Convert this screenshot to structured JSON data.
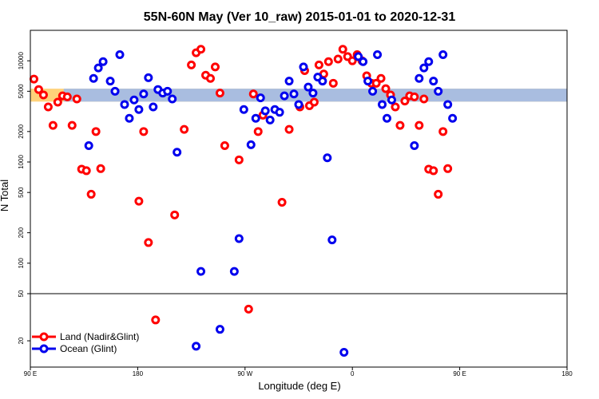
{
  "chart_data": {
    "type": "scatter",
    "title": "55N-60N May (Ver 10_raw)   2015-01-01 to 2020-12-31",
    "xlabel": "Longitude (deg E)",
    "ylabel": "N Total",
    "xlim": [
      90,
      540
    ],
    "x_ticks": [
      {
        "value": 90,
        "label": "90 E"
      },
      {
        "value": 180,
        "label": "180"
      },
      {
        "value": 270,
        "label": "90 W"
      },
      {
        "value": 360,
        "label": "0"
      },
      {
        "value": 450,
        "label": "90 E"
      },
      {
        "value": 540,
        "label": "180"
      }
    ],
    "upper_panel": {
      "scale": "log",
      "ylim": [
        50,
        20000
      ],
      "y_ticks": [
        100,
        200,
        500,
        1000,
        2000,
        5000,
        10000
      ]
    },
    "lower_panel": {
      "scale": "log",
      "ylim": [
        12,
        50
      ],
      "y_ticks": [
        20,
        50
      ]
    },
    "bands": [
      {
        "name": "wrap-shade",
        "from": 5300,
        "to": 3950,
        "color": "#ffd27a"
      },
      {
        "name": "wrap-gray",
        "from": 5300,
        "to": 3950,
        "color": "#a9bde0"
      }
    ],
    "legend_position": "bottom-left",
    "series": [
      {
        "name": "Land (Nadir&Glint)",
        "color": "#ff0000",
        "points": [
          [
            93,
            6600
          ],
          [
            97,
            5200
          ],
          [
            101,
            4600
          ],
          [
            105,
            3500
          ],
          [
            109,
            2300
          ],
          [
            113,
            3900
          ],
          [
            117,
            4500
          ],
          [
            121,
            4400
          ],
          [
            125,
            2300
          ],
          [
            129,
            4200
          ],
          [
            133,
            850
          ],
          [
            137,
            820
          ],
          [
            141,
            480
          ],
          [
            145,
            2000
          ],
          [
            149,
            860
          ],
          [
            181,
            410
          ],
          [
            185,
            2000
          ],
          [
            189,
            160
          ],
          [
            195,
            30
          ],
          [
            211,
            300
          ],
          [
            219,
            2100
          ],
          [
            225,
            9100
          ],
          [
            229,
            12000
          ],
          [
            233,
            13000
          ],
          [
            237,
            7200
          ],
          [
            241,
            6700
          ],
          [
            245,
            8700
          ],
          [
            249,
            4800
          ],
          [
            253,
            1450
          ],
          [
            265,
            1050
          ],
          [
            273,
            37
          ],
          [
            277,
            4700
          ],
          [
            281,
            2000
          ],
          [
            285,
            2900
          ],
          [
            301,
            400
          ],
          [
            307,
            2100
          ],
          [
            316,
            3500
          ],
          [
            320,
            8000
          ],
          [
            324,
            3600
          ],
          [
            328,
            3900
          ],
          [
            332,
            9100
          ],
          [
            336,
            7400
          ],
          [
            340,
            9800
          ],
          [
            344,
            6000
          ],
          [
            348,
            10400
          ],
          [
            352,
            13000
          ],
          [
            356,
            11000
          ],
          [
            360,
            10000
          ],
          [
            364,
            11500
          ],
          [
            368,
            10000
          ],
          [
            372,
            7100
          ],
          [
            376,
            6000
          ],
          [
            380,
            6000
          ],
          [
            384,
            6700
          ],
          [
            388,
            5300
          ],
          [
            392,
            4600
          ],
          [
            396,
            3500
          ],
          [
            400,
            2300
          ],
          [
            404,
            4000
          ],
          [
            408,
            4500
          ],
          [
            412,
            4400
          ],
          [
            416,
            2300
          ],
          [
            420,
            4200
          ],
          [
            424,
            850
          ],
          [
            428,
            820
          ],
          [
            432,
            480
          ],
          [
            436,
            2000
          ],
          [
            440,
            860
          ]
        ]
      },
      {
        "name": "Ocean (Glint)",
        "color": "#0000ee",
        "points": [
          [
            139,
            1450
          ],
          [
            143,
            6700
          ],
          [
            147,
            8500
          ],
          [
            151,
            9800
          ],
          [
            157,
            6300
          ],
          [
            161,
            5000
          ],
          [
            165,
            11500
          ],
          [
            169,
            3700
          ],
          [
            173,
            2700
          ],
          [
            177,
            4100
          ],
          [
            181,
            3300
          ],
          [
            185,
            4700
          ],
          [
            189,
            6800
          ],
          [
            193,
            3500
          ],
          [
            197,
            5200
          ],
          [
            201,
            4800
          ],
          [
            205,
            5000
          ],
          [
            209,
            4200
          ],
          [
            213,
            1250
          ],
          [
            229,
            18
          ],
          [
            233,
            83
          ],
          [
            249,
            25
          ],
          [
            261,
            83
          ],
          [
            265,
            175
          ],
          [
            269,
            3300
          ],
          [
            275,
            1480
          ],
          [
            279,
            2700
          ],
          [
            283,
            4300
          ],
          [
            287,
            3200
          ],
          [
            291,
            2600
          ],
          [
            295,
            3300
          ],
          [
            299,
            3100
          ],
          [
            303,
            4500
          ],
          [
            307,
            6300
          ],
          [
            311,
            4700
          ],
          [
            315,
            3700
          ],
          [
            319,
            8700
          ],
          [
            323,
            5500
          ],
          [
            327,
            4800
          ],
          [
            331,
            6900
          ],
          [
            335,
            6300
          ],
          [
            339,
            1100
          ],
          [
            343,
            170
          ],
          [
            353,
            16
          ],
          [
            365,
            11000
          ],
          [
            369,
            9800
          ],
          [
            373,
            6300
          ],
          [
            377,
            5000
          ],
          [
            381,
            11500
          ],
          [
            385,
            3700
          ],
          [
            389,
            2700
          ],
          [
            393,
            4100
          ],
          [
            412,
            1450
          ],
          [
            416,
            6700
          ],
          [
            420,
            8500
          ],
          [
            424,
            9800
          ],
          [
            428,
            6300
          ],
          [
            432,
            5000
          ],
          [
            436,
            11500
          ],
          [
            440,
            3700
          ],
          [
            444,
            2700
          ]
        ]
      }
    ]
  }
}
